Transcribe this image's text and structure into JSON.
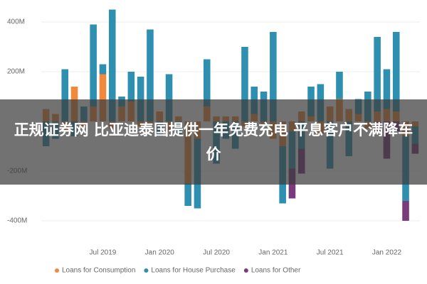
{
  "chart_data": {
    "type": "bar",
    "categories": [
      null,
      null,
      null,
      null,
      null,
      null,
      "Jul 2019",
      null,
      null,
      null,
      null,
      null,
      "Jan 2020",
      null,
      null,
      null,
      null,
      null,
      "Jul 2020",
      null,
      null,
      null,
      null,
      null,
      "Jan 2021",
      null,
      null,
      null,
      null,
      null,
      "Jul 2021",
      null,
      null,
      null,
      null,
      null,
      "Jan 2022",
      null,
      null,
      null
    ],
    "series": [
      {
        "name": "Loans for Consumption",
        "color": "#f0893b",
        "values": [
          50,
          30,
          -40,
          140,
          -20,
          60,
          190,
          -30,
          60,
          80,
          -20,
          -10,
          40,
          -40,
          20,
          -250,
          -70,
          60,
          20,
          20,
          20,
          -20,
          30,
          -10,
          -70,
          -100,
          -40,
          40,
          20,
          -50,
          60,
          90,
          50,
          30,
          -30,
          40,
          50,
          40,
          -60,
          -20
        ]
      },
      {
        "name": "Loans for House Purchase",
        "color": "#2e8fb0",
        "values": [
          -100,
          -70,
          210,
          -60,
          60,
          330,
          40,
          450,
          40,
          120,
          180,
          370,
          -60,
          190,
          -50,
          -90,
          -280,
          190,
          -170,
          -70,
          -110,
          300,
          110,
          120,
          360,
          -230,
          -150,
          -110,
          120,
          150,
          -190,
          110,
          -140,
          60,
          120,
          300,
          160,
          320,
          -260,
          -70
        ]
      },
      {
        "name": "Loans for Other",
        "color": "#7a3b7c",
        "values": [
          0,
          0,
          0,
          0,
          0,
          0,
          0,
          0,
          0,
          0,
          0,
          0,
          0,
          0,
          0,
          0,
          0,
          0,
          0,
          0,
          0,
          0,
          0,
          0,
          0,
          0,
          -120,
          -100,
          0,
          0,
          0,
          0,
          0,
          0,
          0,
          -40,
          -150,
          -40,
          -80,
          -40
        ]
      }
    ],
    "ylim": [
      -460,
      470
    ],
    "yticks": [
      {
        "value": 400,
        "label": "400M"
      },
      {
        "value": 200,
        "label": "200M"
      },
      {
        "value": -200,
        "label": "-200M"
      },
      {
        "value": -400,
        "label": "-400M"
      }
    ],
    "grid": true
  },
  "headline": "正规证券网 比亚迪泰国提供一年免费充电 平息客户不满降车价"
}
